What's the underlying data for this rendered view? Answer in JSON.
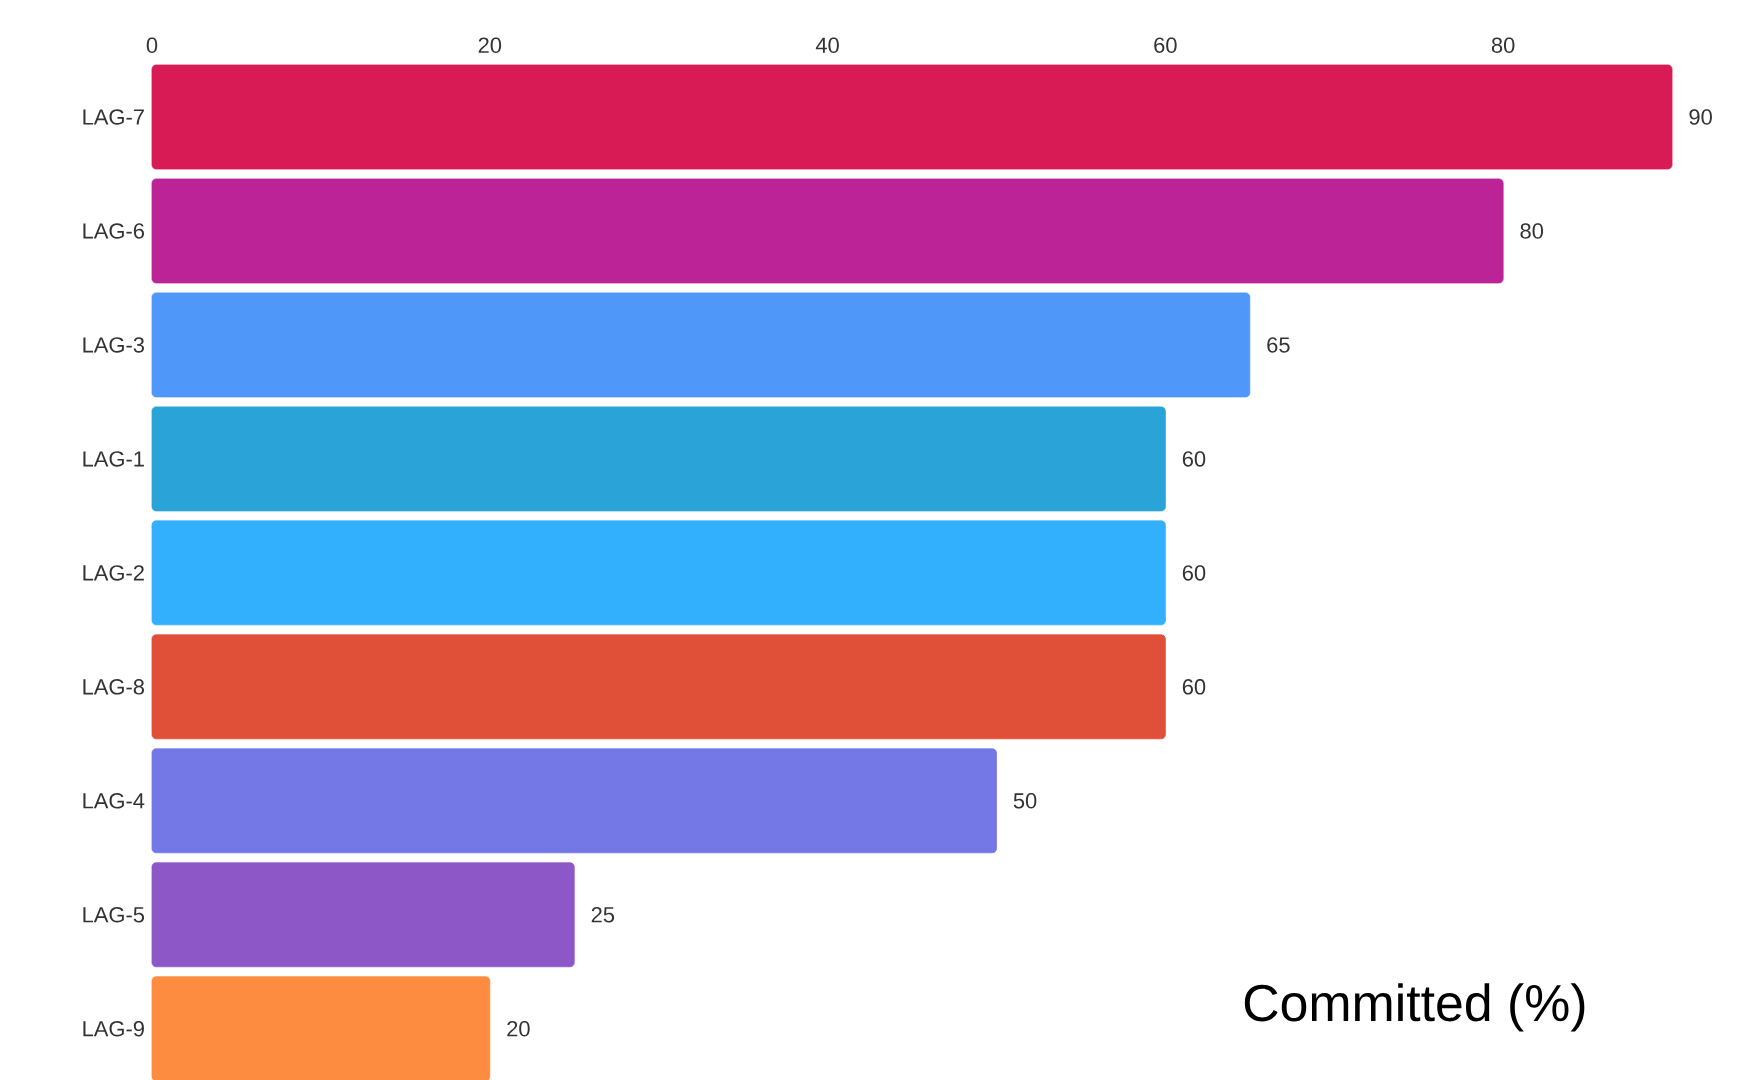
{
  "chart_data": {
    "type": "bar",
    "orientation": "horizontal",
    "title": "Committed (%)",
    "categories": [
      "LAG-7",
      "LAG-6",
      "LAG-3",
      "LAG-1",
      "LAG-2",
      "LAG-8",
      "LAG-4",
      "LAG-5",
      "LAG-9"
    ],
    "values": [
      90,
      80,
      65,
      60,
      60,
      60,
      50,
      25,
      20
    ],
    "colors": [
      "#d81b55",
      "#bc2396",
      "#4f97f8",
      "#29a3d8",
      "#33b0fd",
      "#e04f38",
      "#7378e6",
      "#8e57c8",
      "#fd8b40"
    ],
    "xlim": [
      0,
      90
    ],
    "xticks": [
      0,
      20,
      40,
      60,
      80
    ],
    "data_labels": true
  }
}
